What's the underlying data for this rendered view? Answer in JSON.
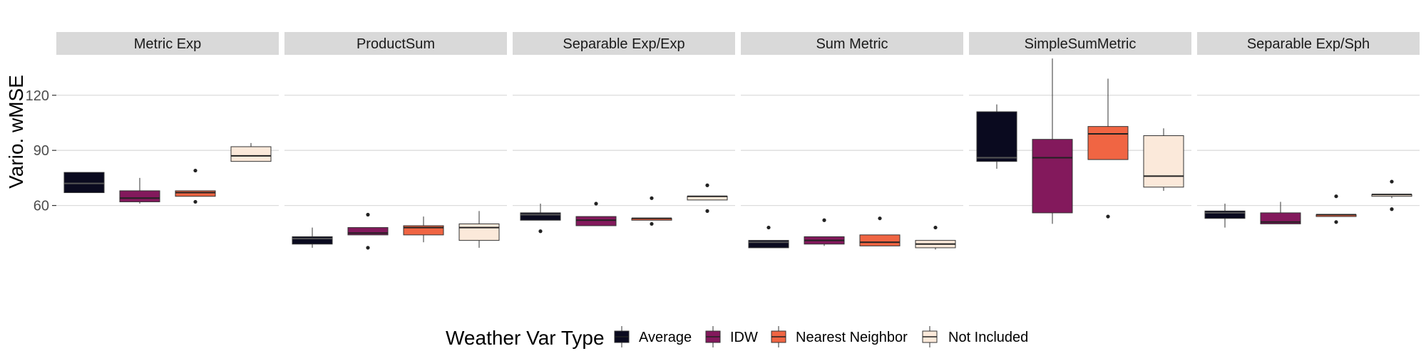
{
  "chart_data": {
    "type": "boxplot",
    "ylabel": "Vario. wMSE",
    "ylim": [
      18,
      142
    ],
    "yticks": [
      60,
      90,
      120
    ],
    "grid": true,
    "legend_title": "Weather Var Type",
    "legend_position": "bottom",
    "groups": [
      "Average",
      "IDW",
      "Nearest Neighbor",
      "Not Included"
    ],
    "colors": {
      "Average": "#0a0a1f",
      "IDW": "#83195c",
      "Nearest Neighbor": "#f06543",
      "Not Included": "#fbe9da"
    },
    "panels": [
      {
        "name": "Metric Exp",
        "boxes": [
          {
            "group": "Average",
            "low": 67,
            "q1": 67,
            "median": 72,
            "q3": 78,
            "high": 78,
            "outliers": []
          },
          {
            "group": "IDW",
            "low": 61,
            "q1": 62,
            "median": 64,
            "q3": 68,
            "high": 75,
            "outliers": []
          },
          {
            "group": "Nearest Neighbor",
            "low": 65,
            "q1": 65,
            "median": 67,
            "q3": 68,
            "high": 68,
            "outliers": [
              62,
              79
            ]
          },
          {
            "group": "Not Included",
            "low": 84,
            "q1": 84,
            "median": 87,
            "q3": 92,
            "high": 94,
            "outliers": []
          }
        ]
      },
      {
        "name": "ProductSum",
        "boxes": [
          {
            "group": "Average",
            "low": 37,
            "q1": 39,
            "median": 42,
            "q3": 43,
            "high": 48,
            "outliers": []
          },
          {
            "group": "IDW",
            "low": 44,
            "q1": 44,
            "median": 45,
            "q3": 48,
            "high": 48,
            "outliers": [
              37,
              55
            ]
          },
          {
            "group": "Nearest Neighbor",
            "low": 40,
            "q1": 44,
            "median": 48,
            "q3": 49,
            "high": 54,
            "outliers": []
          },
          {
            "group": "Not Included",
            "low": 37,
            "q1": 41,
            "median": 48,
            "q3": 50,
            "high": 57,
            "outliers": []
          }
        ]
      },
      {
        "name": "Separable Exp/Exp",
        "boxes": [
          {
            "group": "Average",
            "low": 52,
            "q1": 52,
            "median": 55,
            "q3": 56,
            "high": 61,
            "outliers": [
              46
            ]
          },
          {
            "group": "IDW",
            "low": 49,
            "q1": 49,
            "median": 52,
            "q3": 54,
            "high": 54,
            "outliers": [
              61
            ]
          },
          {
            "group": "Nearest Neighbor",
            "low": 52,
            "q1": 52,
            "median": 53,
            "q3": 53,
            "high": 53,
            "outliers": [
              50,
              64
            ]
          },
          {
            "group": "Not Included",
            "low": 63,
            "q1": 63,
            "median": 65,
            "q3": 65,
            "high": 65,
            "outliers": [
              57,
              71
            ]
          }
        ]
      },
      {
        "name": "Sum Metric",
        "boxes": [
          {
            "group": "Average",
            "low": 37,
            "q1": 37,
            "median": 40,
            "q3": 41,
            "high": 41,
            "outliers": [
              48
            ]
          },
          {
            "group": "IDW",
            "low": 38,
            "q1": 39,
            "median": 41,
            "q3": 43,
            "high": 43,
            "outliers": [
              52
            ]
          },
          {
            "group": "Nearest Neighbor",
            "low": 38,
            "q1": 38,
            "median": 40,
            "q3": 44,
            "high": 44,
            "outliers": [
              53
            ]
          },
          {
            "group": "Not Included",
            "low": 36,
            "q1": 37,
            "median": 39,
            "q3": 41,
            "high": 41,
            "outliers": [
              48
            ]
          }
        ]
      },
      {
        "name": "SimpleSumMetric",
        "boxes": [
          {
            "group": "Average",
            "low": 80,
            "q1": 84,
            "median": 86,
            "q3": 111,
            "high": 115,
            "outliers": []
          },
          {
            "group": "IDW",
            "low": 50,
            "q1": 56,
            "median": 86,
            "q3": 96,
            "high": 140,
            "outliers": []
          },
          {
            "group": "Nearest Neighbor",
            "low": 85,
            "q1": 85,
            "median": 99,
            "q3": 103,
            "high": 129,
            "outliers": [
              54
            ]
          },
          {
            "group": "Not Included",
            "low": 68,
            "q1": 70,
            "median": 76,
            "q3": 98,
            "high": 102,
            "outliers": []
          }
        ]
      },
      {
        "name": "Separable Exp/Sph",
        "boxes": [
          {
            "group": "Average",
            "low": 48,
            "q1": 53,
            "median": 56,
            "q3": 57,
            "high": 61,
            "outliers": []
          },
          {
            "group": "IDW",
            "low": 50,
            "q1": 50,
            "median": 51,
            "q3": 56,
            "high": 62,
            "outliers": []
          },
          {
            "group": "Nearest Neighbor",
            "low": 54,
            "q1": 54,
            "median": 55,
            "q3": 55,
            "high": 55,
            "outliers": [
              51,
              65
            ]
          },
          {
            "group": "Not Included",
            "low": 64,
            "q1": 65,
            "median": 66,
            "q3": 66,
            "high": 66,
            "outliers": [
              58,
              73
            ]
          }
        ]
      }
    ]
  }
}
